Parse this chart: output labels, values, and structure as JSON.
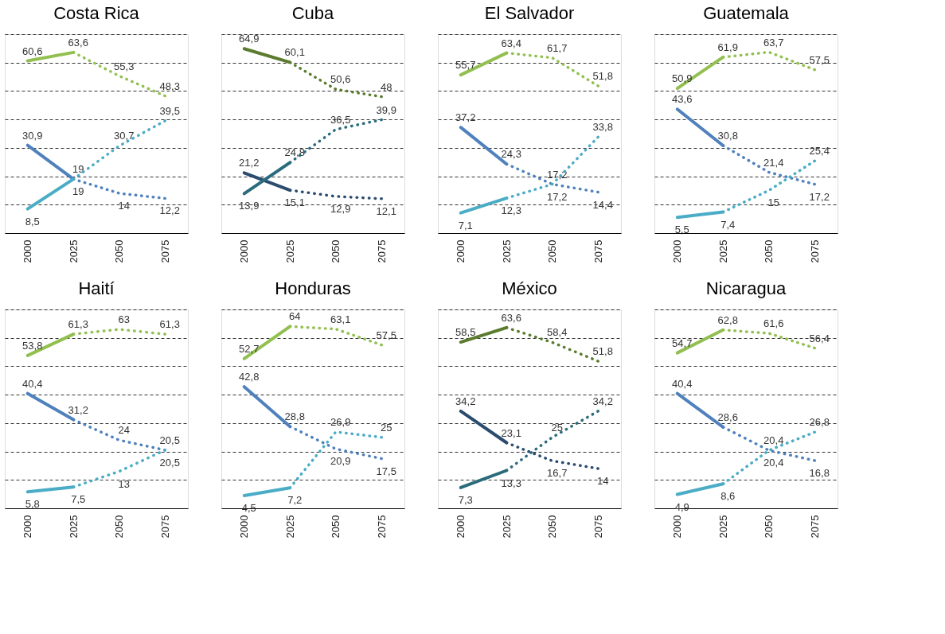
{
  "chart_data": [
    {
      "type": "line",
      "title": "Costa Rica",
      "xlim": [
        1987.5,
        2087.5
      ],
      "xticks": [
        2000,
        2025,
        2050,
        2075
      ],
      "ylim": [
        0,
        70
      ],
      "yticks": [
        {
          "value": 10,
          "label": null
        },
        {
          "value": 20,
          "label": null
        },
        {
          "value": 30,
          "label": null
        },
        {
          "value": 40,
          "label": null
        },
        {
          "value": 50,
          "label": null
        },
        {
          "value": 60,
          "label": null
        },
        {
          "value": 70,
          "label": null
        }
      ],
      "grid": "y",
      "tick_labels": "x",
      "series": [
        {
          "color": "#92c050",
          "line_style": "solid",
          "x": [
            2000,
            2025
          ],
          "values": [
            60.6,
            63.6
          ],
          "value_labels": [
            "60,6",
            "63,6"
          ]
        },
        {
          "color": "#92c050",
          "line_style": "dotted",
          "x": [
            2025,
            2050,
            2075
          ],
          "values": [
            63.6,
            55.3,
            48.3
          ],
          "value_labels": [
            null,
            "55,3",
            "48,3"
          ]
        },
        {
          "color": "#4f81bd",
          "line_style": "solid",
          "x": [
            2000,
            2025
          ],
          "values": [
            30.9,
            19
          ],
          "value_labels": [
            "30,9",
            "19"
          ]
        },
        {
          "color": "#4f81bd",
          "line_style": "dotted",
          "x": [
            2025,
            2050,
            2075
          ],
          "values": [
            19,
            14,
            12.2
          ],
          "value_labels": [
            null,
            "14",
            "12,2"
          ]
        },
        {
          "color": "#4bacc6",
          "line_style": "solid",
          "x": [
            2000,
            2025
          ],
          "values": [
            8.5,
            19
          ],
          "value_labels": [
            "8,5",
            "19"
          ]
        },
        {
          "color": "#4bacc6",
          "line_style": "dotted",
          "x": [
            2025,
            2050,
            2075
          ],
          "values": [
            19,
            30.7,
            39.5
          ],
          "value_labels": [
            null,
            "30,7",
            "39,5"
          ]
        }
      ]
    },
    {
      "type": "line",
      "title": "Cuba",
      "xlim": [
        1987.5,
        2087.5
      ],
      "xticks": [
        2000,
        2025,
        2050,
        2075
      ],
      "ylim": [
        0,
        70
      ],
      "yticks": [
        {
          "value": 10,
          "label": null
        },
        {
          "value": 20,
          "label": null
        },
        {
          "value": 30,
          "label": null
        },
        {
          "value": 40,
          "label": null
        },
        {
          "value": 50,
          "label": null
        },
        {
          "value": 60,
          "label": null
        },
        {
          "value": 70,
          "label": null
        }
      ],
      "grid": "y",
      "tick_labels": "x",
      "series": [
        {
          "color": "#5b7b2f",
          "line_style": "solid",
          "x": [
            2000,
            2025
          ],
          "values": [
            64.9,
            60.1
          ],
          "value_labels": [
            "64,9",
            "60,1"
          ]
        },
        {
          "color": "#5b7b2f",
          "line_style": "dotted",
          "x": [
            2025,
            2050,
            2075
          ],
          "values": [
            60.1,
            50.6,
            48
          ],
          "value_labels": [
            null,
            "50,6",
            "48"
          ]
        },
        {
          "color": "#2b4c6f",
          "line_style": "solid",
          "x": [
            2000,
            2025
          ],
          "values": [
            21.2,
            15.1
          ],
          "value_labels": [
            "21,2",
            "15,1"
          ]
        },
        {
          "color": "#2b4c6f",
          "line_style": "dotted",
          "x": [
            2025,
            2050,
            2075
          ],
          "values": [
            15.1,
            12.9,
            12.1
          ],
          "value_labels": [
            null,
            "12,9",
            "12,1"
          ]
        },
        {
          "color": "#2a6b7c",
          "line_style": "solid",
          "x": [
            2000,
            2025
          ],
          "values": [
            13.9,
            24.8
          ],
          "value_labels": [
            "13,9",
            "24,8"
          ]
        },
        {
          "color": "#2a6b7c",
          "line_style": "dotted",
          "x": [
            2025,
            2050,
            2075
          ],
          "values": [
            24.8,
            36.5,
            39.9
          ],
          "value_labels": [
            null,
            "36,5",
            "39,9"
          ]
        }
      ]
    },
    {
      "type": "line",
      "title": "El Salvador",
      "xlim": [
        1987.5,
        2087.5
      ],
      "xticks": [
        2000,
        2025,
        2050,
        2075
      ],
      "ylim": [
        0,
        70
      ],
      "yticks": [
        {
          "value": 10,
          "label": null
        },
        {
          "value": 20,
          "label": null
        },
        {
          "value": 30,
          "label": null
        },
        {
          "value": 40,
          "label": null
        },
        {
          "value": 50,
          "label": null
        },
        {
          "value": 60,
          "label": null
        },
        {
          "value": 70,
          "label": null
        }
      ],
      "grid": "y",
      "tick_labels": "x",
      "series": [
        {
          "color": "#92c050",
          "line_style": "solid",
          "x": [
            2000,
            2025
          ],
          "values": [
            55.7,
            63.4
          ],
          "value_labels": [
            "55,7",
            "63,4"
          ]
        },
        {
          "color": "#92c050",
          "line_style": "dotted",
          "x": [
            2025,
            2050,
            2075
          ],
          "values": [
            63.4,
            61.7,
            51.8
          ],
          "value_labels": [
            null,
            "61,7",
            "51,8"
          ]
        },
        {
          "color": "#4f81bd",
          "line_style": "solid",
          "x": [
            2000,
            2025
          ],
          "values": [
            37.2,
            24.3
          ],
          "value_labels": [
            "37,2",
            "24,3"
          ]
        },
        {
          "color": "#4f81bd",
          "line_style": "dotted",
          "x": [
            2025,
            2050,
            2075
          ],
          "values": [
            24.3,
            17.2,
            14.4
          ],
          "value_labels": [
            null,
            "17,2",
            "14,4"
          ]
        },
        {
          "color": "#4bacc6",
          "line_style": "solid",
          "x": [
            2000,
            2025
          ],
          "values": [
            7.1,
            12.3
          ],
          "value_labels": [
            "7,1",
            "12,3"
          ]
        },
        {
          "color": "#4bacc6",
          "line_style": "dotted",
          "x": [
            2025,
            2050,
            2075
          ],
          "values": [
            12.3,
            17.2,
            33.8
          ],
          "value_labels": [
            null,
            "17,2",
            "33,8"
          ]
        }
      ]
    },
    {
      "type": "line",
      "title": "Guatemala",
      "xlim": [
        1987.5,
        2087.5
      ],
      "xticks": [
        2000,
        2025,
        2050,
        2075
      ],
      "ylim": [
        0,
        70
      ],
      "yticks": [
        {
          "value": 10,
          "label": null
        },
        {
          "value": 20,
          "label": null
        },
        {
          "value": 30,
          "label": null
        },
        {
          "value": 40,
          "label": null
        },
        {
          "value": 50,
          "label": null
        },
        {
          "value": 60,
          "label": null
        },
        {
          "value": 70,
          "label": null
        }
      ],
      "grid": "y",
      "tick_labels": "x",
      "series": [
        {
          "color": "#92c050",
          "line_style": "solid",
          "x": [
            2000,
            2025
          ],
          "values": [
            50.9,
            61.9
          ],
          "value_labels": [
            "50,9",
            "61,9"
          ]
        },
        {
          "color": "#92c050",
          "line_style": "dotted",
          "x": [
            2025,
            2050,
            2075
          ],
          "values": [
            61.9,
            63.7,
            57.5
          ],
          "value_labels": [
            null,
            "63,7",
            "57,5"
          ]
        },
        {
          "color": "#4f81bd",
          "line_style": "solid",
          "x": [
            2000,
            2025
          ],
          "values": [
            43.6,
            30.8
          ],
          "value_labels": [
            "43,6",
            "30,8"
          ]
        },
        {
          "color": "#4f81bd",
          "line_style": "dotted",
          "x": [
            2025,
            2050,
            2075
          ],
          "values": [
            30.8,
            21.4,
            17.2
          ],
          "value_labels": [
            null,
            "21,4",
            "17,2"
          ]
        },
        {
          "color": "#4bacc6",
          "line_style": "solid",
          "x": [
            2000,
            2025
          ],
          "values": [
            5.5,
            7.4
          ],
          "value_labels": [
            "5,5",
            "7,4"
          ]
        },
        {
          "color": "#4bacc6",
          "line_style": "dotted",
          "x": [
            2025,
            2050,
            2075
          ],
          "values": [
            7.4,
            15,
            25.4
          ],
          "value_labels": [
            null,
            "15",
            "25,4"
          ]
        }
      ]
    },
    {
      "type": "line",
      "title": "Haití",
      "xlim": [
        1987.5,
        2087.5
      ],
      "xticks": [
        2000,
        2025,
        2050,
        2075
      ],
      "ylim": [
        0,
        70
      ],
      "yticks": [
        {
          "value": 10,
          "label": null
        },
        {
          "value": 20,
          "label": null
        },
        {
          "value": 30,
          "label": null
        },
        {
          "value": 40,
          "label": null
        },
        {
          "value": 50,
          "label": null
        },
        {
          "value": 60,
          "label": null
        },
        {
          "value": 70,
          "label": null
        }
      ],
      "grid": "y",
      "tick_labels": "x",
      "series": [
        {
          "color": "#92c050",
          "line_style": "solid",
          "x": [
            2000,
            2025
          ],
          "values": [
            53.8,
            61.3
          ],
          "value_labels": [
            "53,8",
            "61,3"
          ]
        },
        {
          "color": "#92c050",
          "line_style": "dotted",
          "x": [
            2025,
            2050,
            2075
          ],
          "values": [
            61.3,
            63,
            61.3
          ],
          "value_labels": [
            null,
            "63",
            "61,3"
          ]
        },
        {
          "color": "#4f81bd",
          "line_style": "solid",
          "x": [
            2000,
            2025
          ],
          "values": [
            40.4,
            31.2
          ],
          "value_labels": [
            "40,4",
            "31,2"
          ]
        },
        {
          "color": "#4f81bd",
          "line_style": "dotted",
          "x": [
            2025,
            2050,
            2075
          ],
          "values": [
            31.2,
            24,
            20.5
          ],
          "value_labels": [
            null,
            "24",
            "20,5"
          ]
        },
        {
          "color": "#4bacc6",
          "line_style": "solid",
          "x": [
            2000,
            2025
          ],
          "values": [
            5.8,
            7.5
          ],
          "value_labels": [
            "5,8",
            "7,5"
          ]
        },
        {
          "color": "#4bacc6",
          "line_style": "dotted",
          "x": [
            2025,
            2050,
            2075
          ],
          "values": [
            7.5,
            13,
            20.5
          ],
          "value_labels": [
            null,
            "13",
            "20,5"
          ]
        }
      ]
    },
    {
      "type": "line",
      "title": "Honduras",
      "xlim": [
        1987.5,
        2087.5
      ],
      "xticks": [
        2000,
        2025,
        2050,
        2075
      ],
      "ylim": [
        0,
        70
      ],
      "yticks": [
        {
          "value": 10,
          "label": null
        },
        {
          "value": 20,
          "label": null
        },
        {
          "value": 30,
          "label": null
        },
        {
          "value": 40,
          "label": null
        },
        {
          "value": 50,
          "label": null
        },
        {
          "value": 60,
          "label": null
        },
        {
          "value": 70,
          "label": null
        }
      ],
      "grid": "y",
      "tick_labels": "x",
      "series": [
        {
          "color": "#92c050",
          "line_style": "solid",
          "x": [
            2000,
            2025
          ],
          "values": [
            52.7,
            64
          ],
          "value_labels": [
            "52,7",
            "64"
          ]
        },
        {
          "color": "#92c050",
          "line_style": "dotted",
          "x": [
            2025,
            2050,
            2075
          ],
          "values": [
            64,
            63.1,
            57.5
          ],
          "value_labels": [
            null,
            "63,1",
            "57,5"
          ]
        },
        {
          "color": "#4f81bd",
          "line_style": "solid",
          "x": [
            2000,
            2025
          ],
          "values": [
            42.8,
            28.8
          ],
          "value_labels": [
            "42,8",
            "28,8"
          ]
        },
        {
          "color": "#4f81bd",
          "line_style": "dotted",
          "x": [
            2025,
            2050,
            2075
          ],
          "values": [
            28.8,
            20.9,
            17.5
          ],
          "value_labels": [
            null,
            "20,9",
            "17,5"
          ]
        },
        {
          "color": "#4bacc6",
          "line_style": "solid",
          "x": [
            2000,
            2025
          ],
          "values": [
            4.5,
            7.2
          ],
          "value_labels": [
            "4,5",
            "7,2"
          ]
        },
        {
          "color": "#4bacc6",
          "line_style": "dotted",
          "x": [
            2025,
            2050,
            2075
          ],
          "values": [
            7.2,
            26.9,
            25
          ],
          "value_labels": [
            null,
            "26,9",
            "25"
          ]
        }
      ]
    },
    {
      "type": "line",
      "title": "México",
      "xlim": [
        1987.5,
        2087.5
      ],
      "xticks": [
        2000,
        2025,
        2050,
        2075
      ],
      "ylim": [
        0,
        70
      ],
      "yticks": [
        {
          "value": 10,
          "label": null
        },
        {
          "value": 20,
          "label": null
        },
        {
          "value": 30,
          "label": null
        },
        {
          "value": 40,
          "label": null
        },
        {
          "value": 50,
          "label": null
        },
        {
          "value": 60,
          "label": null
        },
        {
          "value": 70,
          "label": null
        }
      ],
      "grid": "y",
      "tick_labels": "x",
      "series": [
        {
          "color": "#5b7b2f",
          "line_style": "solid",
          "x": [
            2000,
            2025
          ],
          "values": [
            58.5,
            63.6
          ],
          "value_labels": [
            "58,5",
            "63,6"
          ]
        },
        {
          "color": "#5b7b2f",
          "line_style": "dotted",
          "x": [
            2025,
            2050,
            2075
          ],
          "values": [
            63.6,
            58.4,
            51.8
          ],
          "value_labels": [
            null,
            "58,4",
            "51,8"
          ]
        },
        {
          "color": "#2b4c6f",
          "line_style": "solid",
          "x": [
            2000,
            2025
          ],
          "values": [
            34.2,
            23.1
          ],
          "value_labels": [
            "34,2",
            "23,1"
          ]
        },
        {
          "color": "#2b4c6f",
          "line_style": "dotted",
          "x": [
            2025,
            2050,
            2075
          ],
          "values": [
            23.1,
            16.7,
            14
          ],
          "value_labels": [
            null,
            "16,7",
            "14"
          ]
        },
        {
          "color": "#2a6b7c",
          "line_style": "solid",
          "x": [
            2000,
            2025
          ],
          "values": [
            7.3,
            13.3
          ],
          "value_labels": [
            "7,3",
            "13,3"
          ]
        },
        {
          "color": "#2a6b7c",
          "line_style": "dotted",
          "x": [
            2025,
            2050,
            2075
          ],
          "values": [
            13.3,
            25,
            34.2
          ],
          "value_labels": [
            null,
            "25",
            "34,2"
          ]
        }
      ]
    },
    {
      "type": "line",
      "title": "Nicaragua",
      "xlim": [
        1987.5,
        2087.5
      ],
      "xticks": [
        2000,
        2025,
        2050,
        2075
      ],
      "ylim": [
        0,
        70
      ],
      "yticks": [
        {
          "value": 10,
          "label": null
        },
        {
          "value": 20,
          "label": null
        },
        {
          "value": 30,
          "label": null
        },
        {
          "value": 40,
          "label": null
        },
        {
          "value": 50,
          "label": null
        },
        {
          "value": 60,
          "label": null
        },
        {
          "value": 70,
          "label": null
        }
      ],
      "grid": "y",
      "tick_labels": "x",
      "series": [
        {
          "color": "#92c050",
          "line_style": "solid",
          "x": [
            2000,
            2025
          ],
          "values": [
            54.7,
            62.8
          ],
          "value_labels": [
            "54,7",
            "62,8"
          ]
        },
        {
          "color": "#92c050",
          "line_style": "dotted",
          "x": [
            2025,
            2050,
            2075
          ],
          "values": [
            62.8,
            61.6,
            56.4
          ],
          "value_labels": [
            null,
            "61,6",
            "56,4"
          ]
        },
        {
          "color": "#4f81bd",
          "line_style": "solid",
          "x": [
            2000,
            2025
          ],
          "values": [
            40.4,
            28.6
          ],
          "value_labels": [
            "40,4",
            "28,6"
          ]
        },
        {
          "color": "#4f81bd",
          "line_style": "dotted",
          "x": [
            2025,
            2050,
            2075
          ],
          "values": [
            28.6,
            20.4,
            16.8
          ],
          "value_labels": [
            null,
            "20,4",
            "16,8"
          ]
        },
        {
          "color": "#4bacc6",
          "line_style": "solid",
          "x": [
            2000,
            2025
          ],
          "values": [
            4.9,
            8.6
          ],
          "value_labels": [
            "4,9",
            "8,6"
          ]
        },
        {
          "color": "#4bacc6",
          "line_style": "dotted",
          "x": [
            2025,
            2050,
            2075
          ],
          "values": [
            8.6,
            20.4,
            26.8
          ],
          "value_labels": [
            null,
            "20,4",
            "26,8"
          ]
        }
      ]
    }
  ]
}
